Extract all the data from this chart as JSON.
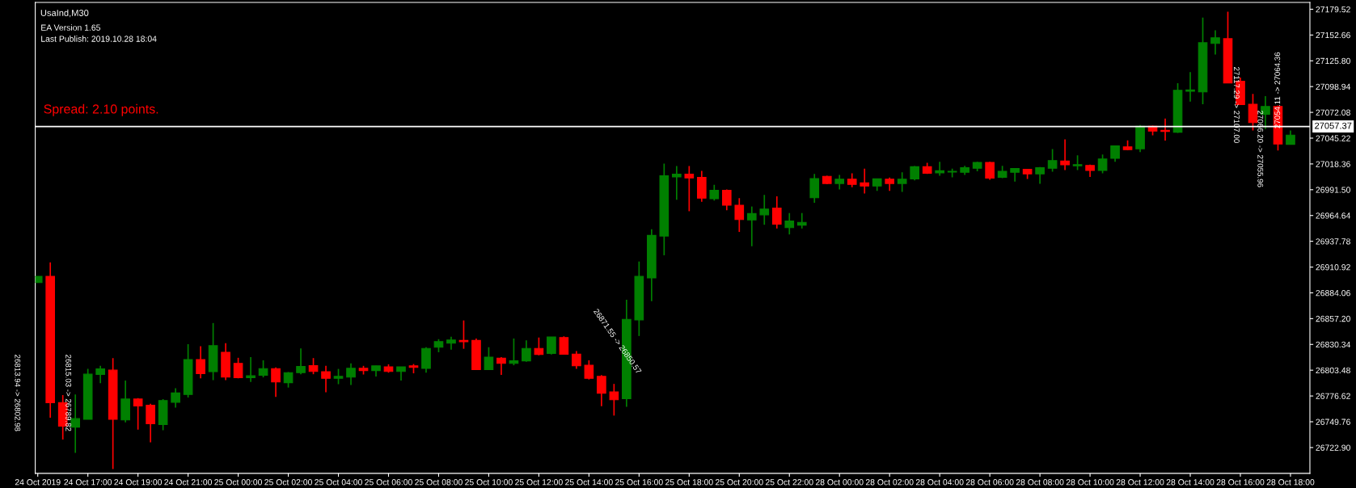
{
  "chart_data": {
    "type": "candlestick",
    "title": "UsaInd,M30",
    "annotations": [
      "EA Version 1.65",
      "Last Publish: 2019.10.28 18:04",
      "Spread: 2.10 points.",
      "26813.94 -> 26802.98",
      "26815.03 -> 26789.82",
      "26871.55 -> 26850.57",
      "27117.29 -> 27107.00",
      "27066.20 -> 27055.96",
      "27054.11 -> 27064.36"
    ],
    "categories": [
      "24 Oct 2019",
      null,
      null,
      null,
      "24 Oct 17:00",
      null,
      null,
      null,
      "24 Oct 19:00",
      null,
      null,
      null,
      "24 Oct 21:00",
      null,
      null,
      null,
      "25 Oct 00:00",
      null,
      null,
      null,
      "25 Oct 02:00",
      null,
      null,
      null,
      "25 Oct 04:00",
      null,
      null,
      null,
      "25 Oct 06:00",
      null,
      null,
      null,
      "25 Oct 08:00",
      null,
      null,
      null,
      "25 Oct 10:00",
      null,
      null,
      null,
      "25 Oct 12:00",
      null,
      null,
      null,
      "25 Oct 14:00",
      null,
      null,
      null,
      "25 Oct 16:00",
      null,
      null,
      null,
      "25 Oct 18:00",
      null,
      null,
      null,
      "25 Oct 20:00",
      null,
      null,
      null,
      "25 Oct 22:00",
      null,
      null,
      null,
      "28 Oct 00:00",
      null,
      null,
      null,
      "28 Oct 02:00",
      null,
      null,
      null,
      "28 Oct 04:00",
      null,
      null,
      null,
      "28 Oct 06:00",
      null,
      null,
      null,
      "28 Oct 08:00",
      null,
      null,
      null,
      "28 Oct 10:00",
      null,
      null,
      null,
      "28 Oct 12:00",
      null,
      null,
      null,
      "28 Oct 14:00",
      null,
      null,
      null,
      "28 Oct 16:00",
      null,
      null,
      null,
      "28 Oct 18:00"
    ],
    "ohlc": [
      [
        26894.7,
        26901.2,
        26894.7,
        26901.2
      ],
      [
        26901.2,
        26915.8,
        26754.0,
        26769.5
      ],
      [
        26769.8,
        26777.6,
        26731.3,
        26745.2
      ],
      [
        26744.2,
        26778.2,
        26717.4,
        26753.0
      ],
      [
        26752.3,
        26804.8,
        26752.3,
        26799.3
      ],
      [
        26799.0,
        26808.0,
        26790.0,
        26804.8
      ],
      [
        26803.5,
        26816.1,
        26700.5,
        26752.3
      ],
      [
        26751.7,
        26792.8,
        26749.1,
        26773.4
      ],
      [
        26773.4,
        26774.4,
        26741.6,
        26766.3
      ],
      [
        26766.9,
        26768.5,
        26728.4,
        26747.8
      ],
      [
        26746.8,
        26773.4,
        26741.0,
        26771.8
      ],
      [
        26770.1,
        26784.7,
        26764.6,
        26779.8
      ],
      [
        26778.2,
        26830.6,
        26775.0,
        26814.5
      ],
      [
        26814.5,
        26828.4,
        26795.0,
        26799.9
      ],
      [
        26801.9,
        26852.6,
        26793.1,
        26829.0
      ],
      [
        26822.2,
        26831.6,
        26793.1,
        26796.3
      ],
      [
        26810.6,
        26816.4,
        26795.0,
        26795.7
      ],
      [
        26795.7,
        26817.1,
        26791.2,
        26797.6
      ],
      [
        26798.3,
        26813.8,
        26796.0,
        26805.1
      ],
      [
        26805.1,
        26806.4,
        26775.6,
        26791.2
      ],
      [
        26790.5,
        26801.5,
        26785.4,
        26800.9
      ],
      [
        26800.9,
        26826.1,
        26799.3,
        26807.4
      ],
      [
        26808.3,
        26816.1,
        26799.3,
        26802.2
      ],
      [
        26801.9,
        26808.0,
        26780.5,
        26795.0
      ],
      [
        26795.0,
        26804.8,
        26788.9,
        26797.0
      ],
      [
        26796.3,
        26810.6,
        26788.0,
        26805.4
      ],
      [
        26805.4,
        26808.0,
        26799.0,
        26803.1
      ],
      [
        26803.1,
        26808.0,
        26797.0,
        26808.0
      ],
      [
        26807.0,
        26809.6,
        26800.9,
        26802.2
      ],
      [
        26802.2,
        26807.0,
        26792.8,
        26807.0
      ],
      [
        26808.0,
        26809.9,
        26800.2,
        26806.4
      ],
      [
        26805.4,
        26827.4,
        26800.9,
        26826.1
      ],
      [
        26827.4,
        26835.8,
        26822.2,
        26833.2
      ],
      [
        26831.6,
        26838.4,
        26824.8,
        26834.9
      ],
      [
        26834.5,
        26855.3,
        26825.8,
        26833.2
      ],
      [
        26834.5,
        26836.5,
        26804.1,
        26804.1
      ],
      [
        26804.1,
        26827.4,
        26804.1,
        26817.1
      ],
      [
        26816.1,
        26817.1,
        26798.6,
        26810.6
      ],
      [
        26810.6,
        26836.5,
        26808.6,
        26813.2
      ],
      [
        26813.2,
        26834.5,
        26812.2,
        26826.1
      ],
      [
        26826.1,
        26837.5,
        26819.0,
        26819.9
      ],
      [
        26820.9,
        26838.1,
        26819.9,
        26838.1
      ],
      [
        26837.5,
        26838.8,
        26820.0,
        26820.0
      ],
      [
        26820.3,
        26823.5,
        26804.8,
        26808.0
      ],
      [
        26808.6,
        26813.8,
        26793.8,
        26795.0
      ],
      [
        26797.0,
        26798.3,
        26765.9,
        26779.5
      ],
      [
        26780.8,
        26789.2,
        26756.2,
        26772.7
      ],
      [
        26773.7,
        26876.9,
        26765.3,
        26856.5
      ],
      [
        26855.9,
        26916.7,
        26839.1,
        26901.2
      ],
      [
        26899.6,
        26950.4,
        26875.3,
        26943.9
      ],
      [
        26943.3,
        27018.7,
        26923.2,
        27006.0
      ],
      [
        27004.8,
        27016.1,
        26981.1,
        27007.7
      ],
      [
        27007.7,
        27016.1,
        26969.1,
        27003.8
      ],
      [
        27004.4,
        27011.2,
        26978.9,
        26982.8
      ],
      [
        26982.1,
        26996.7,
        26980.2,
        26990.8
      ],
      [
        26990.8,
        26991.8,
        26970.1,
        26975.3
      ],
      [
        26975.3,
        26982.8,
        26947.5,
        26960.4
      ],
      [
        26960.1,
        26974.0,
        26932.6,
        26966.6
      ],
      [
        26965.3,
        26986.0,
        26955.0,
        26971.4
      ],
      [
        26972.4,
        26984.7,
        26951.1,
        26955.6
      ],
      [
        26952.0,
        26967.2,
        26944.9,
        26958.8
      ],
      [
        26954.6,
        26967.2,
        26951.1,
        26957.5
      ],
      [
        26983.1,
        27008.0,
        26977.9,
        27003.1
      ],
      [
        27005.4,
        27006.0,
        26997.3,
        26998.0
      ],
      [
        26998.0,
        27007.0,
        26991.8,
        27002.5
      ],
      [
        27002.5,
        27008.6,
        26994.1,
        26997.0
      ],
      [
        26998.6,
        27013.5,
        26987.6,
        26995.4
      ],
      [
        26995.4,
        27002.8,
        26990.2,
        27002.8
      ],
      [
        27002.5,
        27004.1,
        26990.2,
        26998.0
      ],
      [
        26998.0,
        27009.6,
        26989.2,
        27002.5
      ],
      [
        27002.8,
        27016.1,
        27001.2,
        27015.4
      ],
      [
        27015.4,
        27019.6,
        27008.0,
        27008.6
      ],
      [
        27009.0,
        27020.6,
        27006.0,
        27011.2
      ],
      [
        27009.9,
        27013.5,
        27004.4,
        27010.6
      ],
      [
        27009.6,
        27016.4,
        27007.0,
        27014.5
      ],
      [
        27013.8,
        27020.6,
        27010.6,
        27020.0
      ],
      [
        27020.0,
        27020.6,
        27001.8,
        27003.5
      ],
      [
        27004.4,
        27016.4,
        27003.5,
        27010.6
      ],
      [
        27009.6,
        27013.5,
        26999.9,
        27013.5
      ],
      [
        27012.8,
        27012.8,
        27002.8,
        27008.0
      ],
      [
        27008.0,
        27015.1,
        26997.6,
        27014.5
      ],
      [
        27013.8,
        27033.9,
        27010.3,
        27021.9
      ],
      [
        27021.3,
        27043.9,
        27011.9,
        27017.4
      ],
      [
        27016.4,
        27027.4,
        27011.9,
        27017.7
      ],
      [
        27016.7,
        27017.7,
        27004.8,
        27011.6
      ],
      [
        27011.6,
        27028.1,
        27008.6,
        27023.5
      ],
      [
        27024.2,
        27037.1,
        27020.6,
        27037.1
      ],
      [
        27036.1,
        27042.9,
        27032.6,
        27033.2
      ],
      [
        27034.2,
        27058.8,
        27030.6,
        27057.5
      ],
      [
        27057.5,
        27058.2,
        27048.1,
        27052.6
      ],
      [
        27053.3,
        27065.6,
        27042.6,
        27052.3
      ],
      [
        27051.4,
        27102.5,
        27050.7,
        27095.0
      ],
      [
        27094.1,
        27114.1,
        27083.4,
        27095.4
      ],
      [
        27093.4,
        27170.8,
        27080.5,
        27144.6
      ],
      [
        27143.9,
        27157.5,
        27132.3,
        27149.7
      ],
      [
        27148.8,
        27176.9,
        27102.8,
        27102.8
      ],
      [
        27104.4,
        27108.3,
        27080.2,
        27080.2
      ],
      [
        27080.5,
        27091.2,
        27053.3,
        27061.4
      ],
      [
        27070.1,
        27088.9,
        27054.6,
        27078.2
      ],
      [
        27078.2,
        27079.2,
        27032.3,
        27039.1
      ],
      [
        27038.8,
        27053.3,
        27038.8,
        27048.4
      ]
    ],
    "colors": [
      "#008000",
      "#ff0000",
      "#ff0000",
      "#008000",
      "#008000",
      "#008000",
      "#ff0000",
      "#008000",
      "#ff0000",
      "#ff0000",
      "#008000",
      "#008000",
      "#008000",
      "#ff0000",
      "#008000",
      "#ff0000",
      "#ff0000",
      "#008000",
      "#008000",
      "#ff0000",
      "#008000",
      "#008000",
      "#ff0000",
      "#ff0000",
      "#008000",
      "#008000",
      "#ff0000",
      "#008000",
      "#ff0000",
      "#008000",
      "#ff0000",
      "#008000",
      "#008000",
      "#008000",
      "#ff0000",
      "#ff0000",
      "#008000",
      "#ff0000",
      "#008000",
      "#008000",
      "#ff0000",
      "#008000",
      "#ff0000",
      "#ff0000",
      "#ff0000",
      "#ff0000",
      "#ff0000",
      "#008000",
      "#008000",
      "#008000",
      "#008000",
      "#008000",
      "#ff0000",
      "#ff0000",
      "#008000",
      "#ff0000",
      "#ff0000",
      "#008000",
      "#008000",
      "#ff0000",
      "#008000",
      "#008000",
      "#008000",
      "#ff0000",
      "#008000",
      "#ff0000",
      "#ff0000",
      "#008000",
      "#ff0000",
      "#008000",
      "#008000",
      "#ff0000",
      "#008000",
      "#008000",
      "#008000",
      "#008000",
      "#ff0000",
      "#008000",
      "#008000",
      "#ff0000",
      "#008000",
      "#008000",
      "#ff0000",
      "#008000",
      "#ff0000",
      "#008000",
      "#008000",
      "#ff0000",
      "#008000",
      "#ff0000",
      "#ff0000",
      "#008000",
      "#008000",
      "#008000",
      "#008000",
      "#ff0000",
      "#ff0000",
      "#ff0000",
      "#008000",
      "#ff0000",
      "#008000"
    ],
    "ylim": [
      26696.0,
      27186.6
    ],
    "yticks": [
      {
        "value": 26722.9,
        "label": "26722.90"
      },
      {
        "value": 26749.76,
        "label": "26749.76"
      },
      {
        "value": 26776.62,
        "label": "26776.62"
      },
      {
        "value": 26803.48,
        "label": "26803.48"
      },
      {
        "value": 26830.34,
        "label": "26830.34"
      },
      {
        "value": 26857.2,
        "label": "26857.20"
      },
      {
        "value": 26884.06,
        "label": "26884.06"
      },
      {
        "value": 26910.92,
        "label": "26910.92"
      },
      {
        "value": 26937.78,
        "label": "26937.78"
      },
      {
        "value": 26964.64,
        "label": "26964.64"
      },
      {
        "value": 26991.5,
        "label": "26991.50"
      },
      {
        "value": 27018.36,
        "label": "27018.36"
      },
      {
        "value": 27045.22,
        "label": "27045.22"
      },
      {
        "value": 27072.08,
        "label": "27072.08"
      },
      {
        "value": 27098.94,
        "label": "27098.94"
      },
      {
        "value": 27125.8,
        "label": "27125.80"
      },
      {
        "value": 27152.66,
        "label": "27152.66"
      },
      {
        "value": 27179.52,
        "label": "27179.52"
      }
    ],
    "ref_lines": [
      {
        "axis": "y",
        "value": 27057.37,
        "label": "27057.37",
        "color": "#ffffff",
        "line_style": "solid"
      }
    ],
    "grid": false,
    "legend": false
  }
}
